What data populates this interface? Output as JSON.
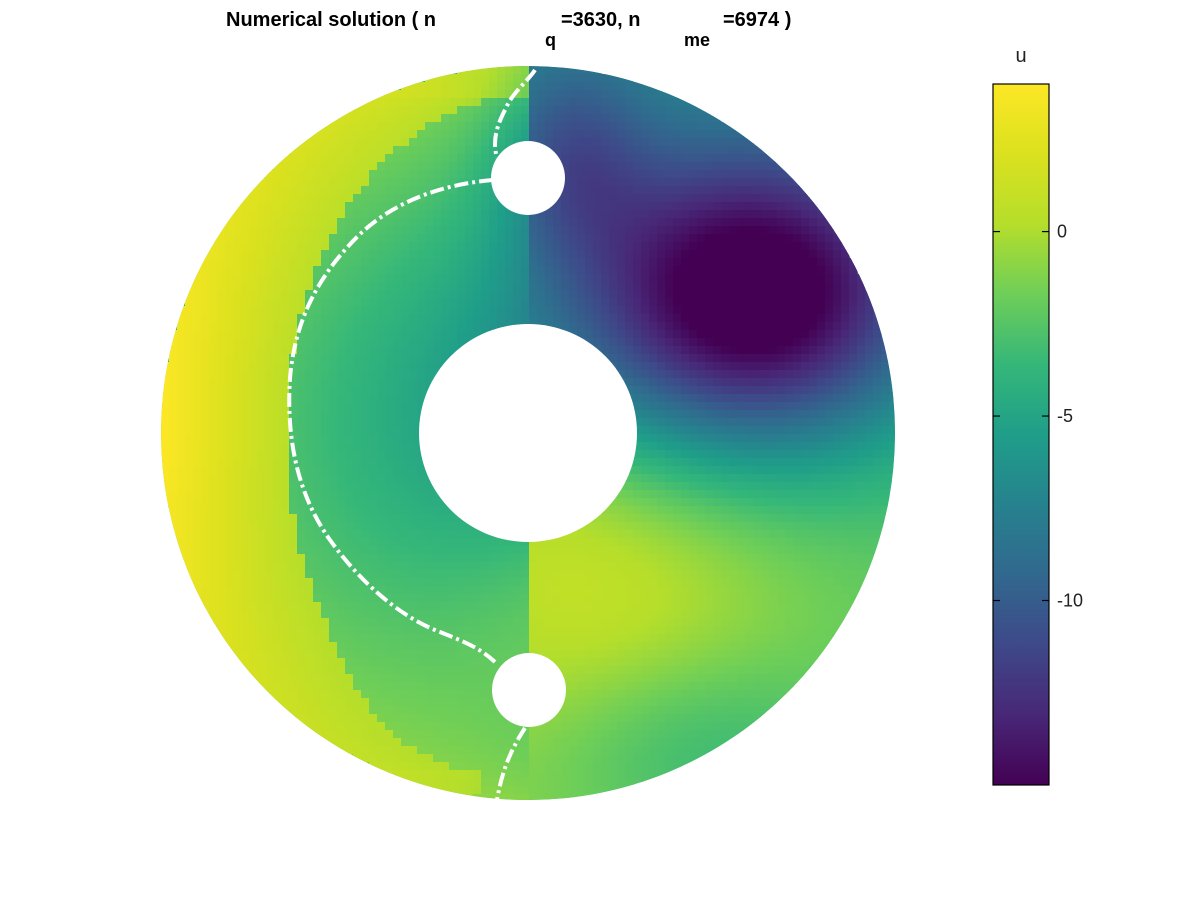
{
  "chart_data": {
    "type": "heatmap",
    "title": {
      "part1": "Numerical solution ( n",
      "sub1": "q",
      "part2": "=3630, n",
      "sub2": "me",
      "part3": "=6974 )"
    },
    "colorbar": {
      "label": "u",
      "range": [
        -15,
        4
      ],
      "ticks": [
        0,
        -5,
        -10
      ],
      "tick_labels": [
        "0",
        "-5",
        "-10"
      ],
      "colormap": "viridis"
    },
    "domain": {
      "shape": "annulus with two circular holes",
      "outer_radius": 1.0,
      "inner_hole_radius": 0.295,
      "small_holes": [
        {
          "x": 0.0,
          "y": 0.7,
          "r": 0.1
        },
        {
          "x": 0.0,
          "y": -0.7,
          "r": 0.1
        }
      ]
    },
    "field": {
      "max_value": 4,
      "max_location": "left outer rim",
      "min_value": -15,
      "min_location": "upper right, near x=0.62, y=0.36",
      "description_of_level": "u=0 contour shown as white dash-dot curve from the top hole to the bottom hole around the left side"
    }
  },
  "colors": {
    "contour": "#ffffff",
    "background": "#ffffff",
    "axis": "#000000"
  }
}
